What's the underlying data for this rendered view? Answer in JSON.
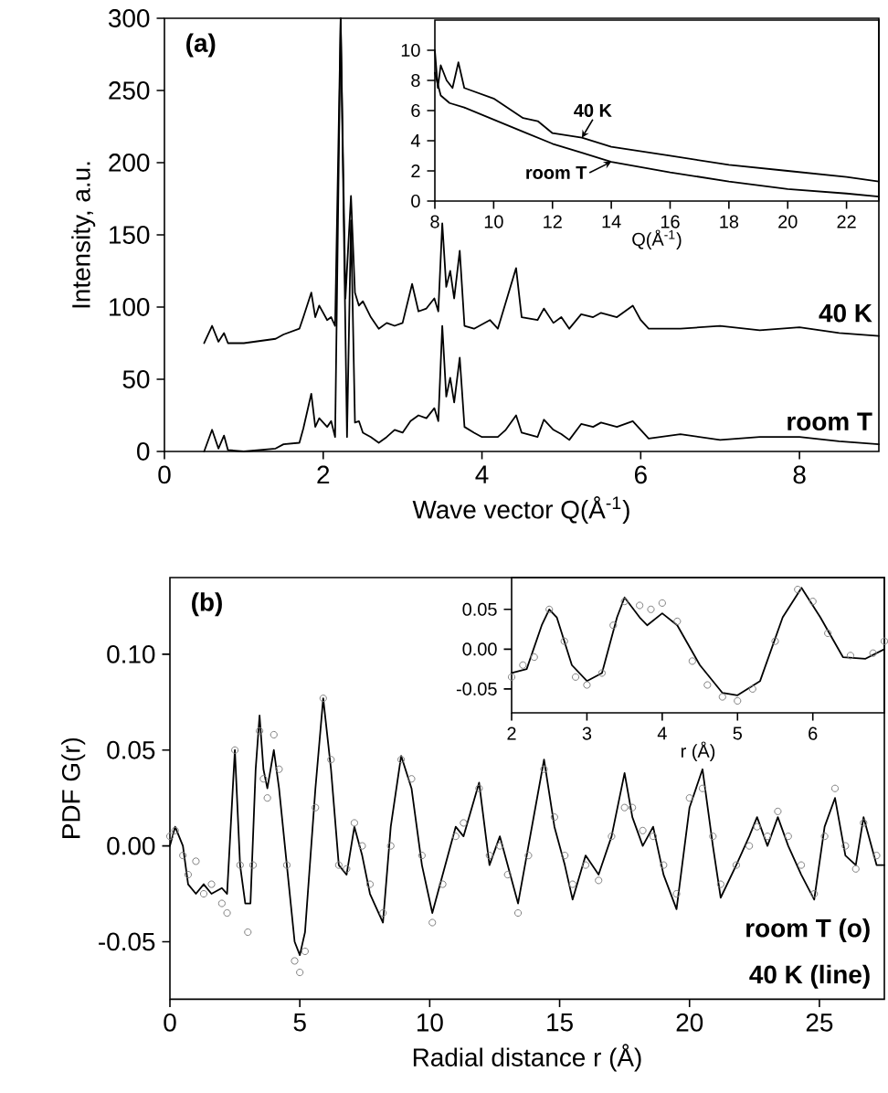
{
  "chart_data": [
    {
      "type": "line",
      "title": "(a)",
      "xlabel": "Wave vector Q(Å$^{-1}$)",
      "ylabel": "Intensity, a.u.",
      "xlim": [
        0,
        9
      ],
      "ylim": [
        0,
        300
      ],
      "xticks": [
        0,
        2,
        4,
        6,
        8
      ],
      "yticks": [
        0,
        50,
        100,
        150,
        200,
        250,
        300
      ],
      "grid": false,
      "series": [
        {
          "name": "40 K",
          "color": "#000000",
          "x": [
            0.5,
            0.6,
            0.68,
            0.75,
            0.8,
            1.0,
            1.4,
            1.5,
            1.7,
            1.75,
            1.85,
            1.9,
            1.95,
            2.05,
            2.1,
            2.15,
            2.22,
            2.28,
            2.35,
            2.4,
            2.45,
            2.5,
            2.6,
            2.7,
            2.8,
            2.9,
            3.0,
            3.12,
            3.2,
            3.3,
            3.4,
            3.45,
            3.5,
            3.55,
            3.6,
            3.65,
            3.72,
            3.78,
            3.9,
            4.1,
            4.2,
            4.43,
            4.5,
            4.7,
            4.78,
            4.9,
            5.0,
            5.1,
            5.25,
            5.4,
            5.5,
            5.7,
            5.9,
            6.0,
            6.1,
            6.5,
            7.0,
            7.5,
            8.0,
            8.5,
            9.0
          ],
          "values": [
            75,
            87,
            76,
            82,
            75,
            75,
            78,
            81,
            85,
            93,
            110,
            93,
            101,
            91,
            93,
            87,
            300,
            106,
            177,
            110,
            101,
            104,
            93,
            85,
            89,
            87,
            89,
            116,
            97,
            99,
            106,
            97,
            158,
            114,
            125,
            106,
            139,
            87,
            85,
            91,
            85,
            127,
            93,
            91,
            99,
            89,
            93,
            85,
            95,
            93,
            96,
            93,
            101,
            91,
            85,
            85,
            87,
            84,
            86,
            82,
            80
          ]
        },
        {
          "name": "room T",
          "color": "#000000",
          "x": [
            0.5,
            0.6,
            0.68,
            0.75,
            0.8,
            1.0,
            1.4,
            1.5,
            1.7,
            1.75,
            1.85,
            1.9,
            1.95,
            2.05,
            2.1,
            2.15,
            2.22,
            2.3,
            2.35,
            2.4,
            2.45,
            2.5,
            2.6,
            2.7,
            2.8,
            2.9,
            3.0,
            3.1,
            3.2,
            3.3,
            3.4,
            3.45,
            3.5,
            3.55,
            3.6,
            3.65,
            3.72,
            3.78,
            3.9,
            4.0,
            4.2,
            4.3,
            4.43,
            4.5,
            4.7,
            4.78,
            4.9,
            5.0,
            5.1,
            5.25,
            5.4,
            5.5,
            5.7,
            5.9,
            6.0,
            6.1,
            6.5,
            7.0,
            7.5,
            8.0,
            8.5,
            9.0
          ],
          "values": [
            0,
            15,
            2,
            11,
            1,
            0,
            2,
            5,
            6,
            16,
            40,
            17,
            23,
            17,
            21,
            10,
            300,
            10,
            160,
            20,
            21,
            13,
            10,
            6,
            10,
            15,
            13,
            21,
            25,
            23,
            30,
            21,
            87,
            38,
            51,
            34,
            65,
            17,
            13,
            10,
            10,
            15,
            25,
            13,
            10,
            22,
            15,
            12,
            8,
            19,
            17,
            20,
            17,
            21,
            15,
            9,
            12,
            8,
            10,
            10,
            7,
            5
          ]
        }
      ]
    },
    {
      "type": "line",
      "xlabel": "Q(Å$^{-1}$)",
      "xlim": [
        8,
        23.1
      ],
      "ylim": [
        0,
        12
      ],
      "xticks": [
        8,
        10,
        12,
        14,
        16,
        18,
        20,
        22
      ],
      "yticks": [
        0,
        2,
        4,
        6,
        8,
        10
      ],
      "grid": false,
      "series": [
        {
          "name": "40 K",
          "color": "#000000",
          "x": [
            8,
            8.1,
            8.2,
            8.4,
            8.6,
            8.8,
            9,
            10,
            11,
            11.5,
            12,
            13,
            14,
            16,
            18,
            20,
            22,
            23.1
          ],
          "values": [
            10,
            7.5,
            9,
            8,
            7.5,
            9.2,
            7.5,
            6.8,
            5.5,
            5.3,
            4.5,
            4.2,
            3.6,
            3.0,
            2.4,
            2.0,
            1.6,
            1.3
          ]
        },
        {
          "name": "room T",
          "color": "#000000",
          "x": [
            8,
            8.2,
            8.5,
            9,
            10,
            11,
            12,
            13,
            14,
            16,
            18,
            20,
            22,
            23.1
          ],
          "values": [
            8.5,
            7,
            6.5,
            6.2,
            5.4,
            4.6,
            3.8,
            3.2,
            2.6,
            1.9,
            1.3,
            0.8,
            0.5,
            0.3
          ]
        }
      ]
    },
    {
      "type": "line",
      "title": "(b)",
      "xlabel": "Radial distance r (Å)",
      "ylabel": "PDF G(r)",
      "xlim": [
        0,
        27.5
      ],
      "ylim": [
        -0.08,
        0.14
      ],
      "xticks": [
        0,
        5,
        10,
        15,
        20,
        25
      ],
      "yticks": [
        {
          "value": -0.05,
          "label": "-0.05"
        },
        {
          "value": 0,
          "label": "0.00"
        },
        {
          "value": 0.05,
          "label": "0.05"
        },
        {
          "value": 0.1,
          "label": "0.10"
        }
      ],
      "grid": false,
      "series": [
        {
          "name": "room T (o)",
          "type": "scatter",
          "marker": "circle",
          "color": "#808080",
          "x": [
            0.0,
            0.2,
            0.5,
            0.7,
            1.0,
            1.3,
            1.6,
            2.0,
            2.2,
            2.5,
            2.7,
            3.0,
            3.2,
            3.45,
            3.6,
            3.75,
            4.0,
            4.2,
            4.5,
            4.8,
            5.0,
            5.2,
            5.6,
            5.9,
            6.2,
            6.5,
            6.8,
            7.1,
            7.4,
            7.7,
            8.2,
            8.5,
            8.9,
            9.3,
            9.7,
            10.1,
            10.5,
            11.0,
            11.3,
            11.9,
            12.3,
            12.7,
            13.0,
            13.4,
            13.8,
            14.4,
            14.8,
            15.2,
            15.5,
            16.0,
            16.5,
            17.0,
            17.5,
            17.8,
            18.2,
            18.6,
            19.0,
            19.5,
            20.0,
            20.5,
            20.9,
            21.2,
            21.8,
            22.3,
            22.6,
            23.0,
            23.4,
            23.8,
            24.3,
            24.8,
            25.2,
            25.6,
            26.0,
            26.4,
            26.7,
            27.2
          ],
          "values": [
            0.005,
            0.008,
            -0.005,
            -0.015,
            -0.008,
            -0.025,
            -0.02,
            -0.03,
            -0.035,
            0.05,
            -0.01,
            -0.045,
            -0.01,
            0.06,
            0.035,
            0.025,
            0.058,
            0.04,
            -0.01,
            -0.06,
            -0.066,
            -0.055,
            0.02,
            0.077,
            0.045,
            -0.01,
            -0.012,
            0.012,
            0.0,
            -0.02,
            -0.035,
            0.0,
            0.045,
            0.035,
            -0.005,
            -0.04,
            -0.02,
            0.005,
            0.012,
            0.03,
            -0.005,
            0.0,
            -0.015,
            -0.035,
            -0.005,
            0.04,
            0.015,
            -0.005,
            -0.02,
            -0.01,
            -0.018,
            0.005,
            0.02,
            0.02,
            0.008,
            0.005,
            -0.01,
            -0.025,
            0.025,
            0.03,
            0.005,
            -0.02,
            -0.01,
            0.0,
            0.01,
            0.005,
            0.018,
            0.005,
            -0.01,
            -0.025,
            0.005,
            0.03,
            0.0,
            -0.012,
            0.012,
            -0.005
          ]
        },
        {
          "name": "40 K (line)",
          "marker": "none",
          "color": "#000000",
          "x": [
            0.0,
            0.2,
            0.5,
            0.7,
            1.0,
            1.3,
            1.6,
            2.0,
            2.2,
            2.5,
            2.7,
            2.9,
            3.1,
            3.3,
            3.45,
            3.6,
            3.75,
            4.0,
            4.2,
            4.5,
            4.8,
            5.0,
            5.2,
            5.6,
            5.9,
            6.2,
            6.5,
            6.8,
            7.1,
            7.4,
            7.7,
            8.2,
            8.5,
            8.9,
            9.3,
            9.7,
            10.1,
            10.5,
            11.0,
            11.3,
            11.9,
            12.3,
            12.7,
            13.0,
            13.4,
            13.8,
            14.4,
            14.8,
            15.2,
            15.5,
            16.0,
            16.5,
            17.0,
            17.5,
            17.8,
            18.2,
            18.6,
            19.0,
            19.5,
            20.0,
            20.5,
            20.9,
            21.2,
            21.8,
            22.3,
            22.6,
            23.0,
            23.4,
            23.8,
            24.3,
            24.8,
            25.2,
            25.6,
            26.0,
            26.4,
            26.7,
            27.2,
            27.5
          ],
          "values": [
            0.0,
            0.01,
            0.0,
            -0.02,
            -0.025,
            -0.02,
            -0.025,
            -0.022,
            -0.025,
            0.05,
            -0.01,
            -0.03,
            -0.03,
            0.04,
            0.068,
            0.04,
            0.03,
            0.05,
            0.03,
            -0.01,
            -0.05,
            -0.057,
            -0.045,
            0.03,
            0.077,
            0.04,
            -0.01,
            -0.015,
            0.01,
            -0.005,
            -0.025,
            -0.04,
            0.01,
            0.047,
            0.03,
            -0.01,
            -0.035,
            -0.015,
            0.01,
            0.005,
            0.033,
            -0.01,
            0.005,
            -0.01,
            -0.03,
            0.0,
            0.045,
            0.01,
            -0.01,
            -0.028,
            -0.005,
            -0.015,
            0.005,
            0.038,
            0.015,
            0.0,
            0.01,
            -0.015,
            -0.033,
            0.02,
            0.04,
            0.0,
            -0.027,
            -0.01,
            0.005,
            0.015,
            0.0,
            0.015,
            0.0,
            -0.015,
            -0.028,
            0.01,
            0.025,
            -0.005,
            -0.01,
            0.015,
            -0.01,
            -0.01
          ]
        }
      ]
    },
    {
      "type": "line",
      "xlabel": "r (Å)",
      "xlim": [
        2,
        6.95
      ],
      "ylim": [
        -0.08,
        0.09
      ],
      "xticks": [
        2,
        3,
        4,
        5,
        6
      ],
      "yticks": [
        {
          "value": -0.05,
          "label": "-0.05"
        },
        {
          "value": 0,
          "label": "0.00"
        },
        {
          "value": 0.05,
          "label": "0.05"
        }
      ],
      "grid": false,
      "series": [
        {
          "type": "scatter",
          "marker": "circle",
          "color": "#808080",
          "x": [
            2.0,
            2.15,
            2.3,
            2.5,
            2.7,
            2.85,
            3.0,
            3.2,
            3.35,
            3.5,
            3.7,
            3.85,
            4.0,
            4.2,
            4.4,
            4.6,
            4.8,
            5.0,
            5.2,
            5.5,
            5.8,
            6.0,
            6.2,
            6.5,
            6.8,
            6.95
          ],
          "values": [
            -0.035,
            -0.02,
            -0.01,
            0.05,
            0.01,
            -0.035,
            -0.045,
            -0.03,
            0.03,
            0.06,
            0.055,
            0.05,
            0.058,
            0.035,
            -0.015,
            -0.045,
            -0.06,
            -0.065,
            -0.05,
            0.01,
            0.075,
            0.06,
            0.02,
            -0.008,
            -0.005,
            0.01
          ]
        },
        {
          "color": "#000000",
          "marker": "none",
          "x": [
            2.0,
            2.2,
            2.4,
            2.5,
            2.6,
            2.8,
            3.0,
            3.2,
            3.4,
            3.5,
            3.7,
            3.8,
            4.0,
            4.2,
            4.5,
            4.8,
            5.0,
            5.3,
            5.6,
            5.85,
            6.1,
            6.4,
            6.7,
            6.95
          ],
          "values": [
            -0.03,
            -0.025,
            0.03,
            0.05,
            0.04,
            -0.02,
            -0.04,
            -0.03,
            0.04,
            0.065,
            0.04,
            0.03,
            0.045,
            0.03,
            -0.02,
            -0.055,
            -0.058,
            -0.04,
            0.04,
            0.077,
            0.04,
            -0.01,
            -0.012,
            0.0
          ]
        }
      ]
    }
  ]
}
